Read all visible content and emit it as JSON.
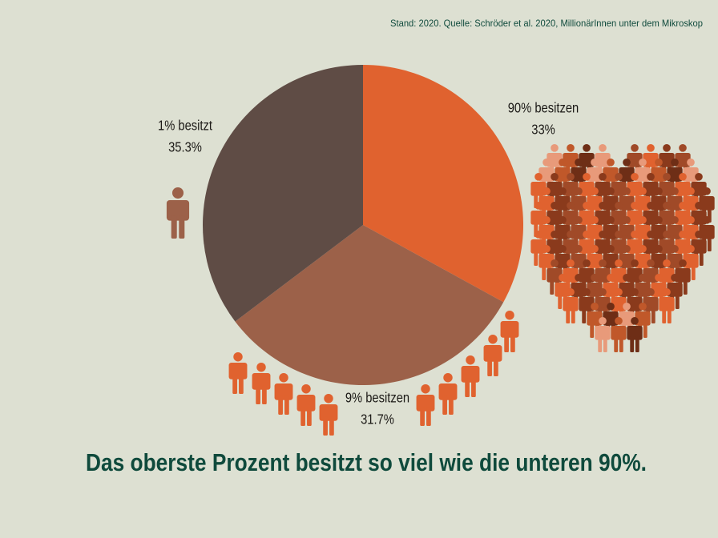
{
  "chart_data": {
    "type": "pie",
    "title": "Das oberste Prozent besitzt so viel wie die unteren 90%.",
    "source": "Stand: 2020. Quelle: Schröder et al. 2020, MillionärInnen unter dem Mikroskop",
    "categories": [
      "90% besitzen",
      "9% besitzen",
      "1% besitzt"
    ],
    "values": [
      33,
      31.7,
      35.3
    ],
    "value_labels": [
      "33%",
      "31.7%",
      "35.3%"
    ],
    "colors": [
      "#e0622f",
      "#9c6149",
      "#5f4c45"
    ]
  }
}
